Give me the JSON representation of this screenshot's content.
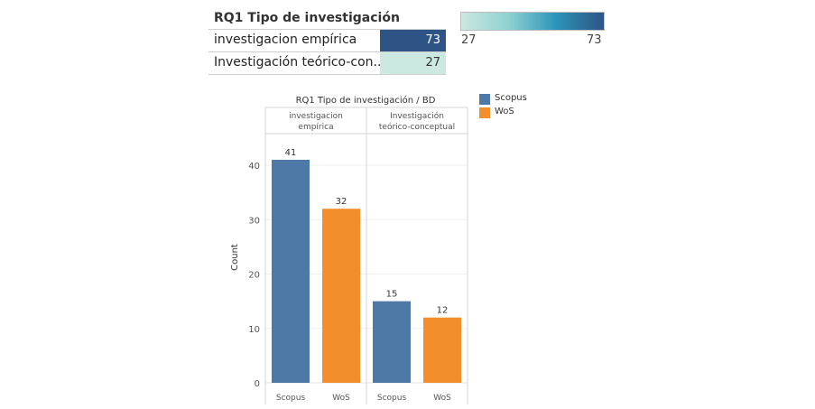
{
  "table": {
    "title": "RQ1 Tipo de investigación",
    "rows": [
      {
        "label": "investigacion empírica",
        "value": "73"
      },
      {
        "label": "Investigación teórico-con..",
        "value": "27"
      }
    ],
    "color_scale": {
      "min_label": "27",
      "max_label": "73",
      "colors": [
        "#cbe9e0",
        "#2e5485"
      ]
    }
  },
  "legend": {
    "items": [
      {
        "label": "Scopus",
        "color": "#4e79a7"
      },
      {
        "label": "WoS",
        "color": "#f28e2b"
      }
    ]
  },
  "chart_data": {
    "type": "bar",
    "title": "RQ1 Tipo de investigación / BD",
    "ylabel": "Count",
    "ylim": [
      0,
      45
    ],
    "yticks": [
      "0",
      "10",
      "20",
      "30",
      "40"
    ],
    "panels": [
      {
        "header_lines": [
          "investigacion",
          "empírica"
        ],
        "categories": [
          "Scopus",
          "WoS"
        ],
        "values": [
          41,
          32
        ]
      },
      {
        "header_lines": [
          "Investigación",
          "teórico-conceptual"
        ],
        "categories": [
          "Scopus",
          "WoS"
        ],
        "values": [
          15,
          12
        ]
      }
    ],
    "series_colors": {
      "Scopus": "#4e79a7",
      "WoS": "#f28e2b"
    }
  }
}
